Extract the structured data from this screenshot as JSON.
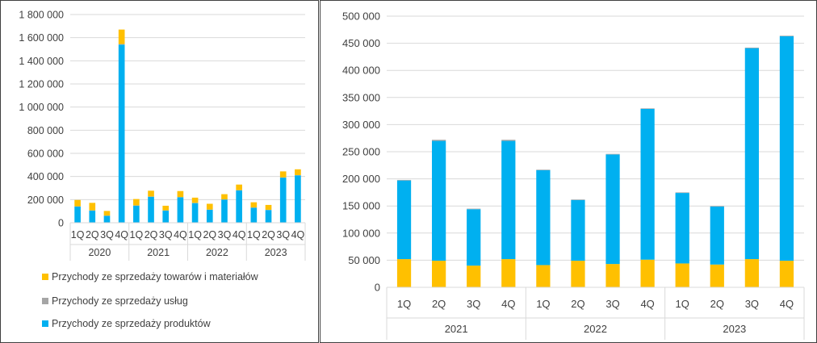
{
  "chart_data": [
    {
      "type": "bar",
      "stacked": true,
      "categories": [
        "1Q",
        "2Q",
        "3Q",
        "4Q",
        "1Q",
        "2Q",
        "3Q",
        "4Q",
        "1Q",
        "2Q",
        "3Q",
        "4Q",
        "1Q",
        "2Q",
        "3Q",
        "4Q"
      ],
      "groups": [
        {
          "label": "2020",
          "count": 4
        },
        {
          "label": "2021",
          "count": 4
        },
        {
          "label": "2022",
          "count": 4
        },
        {
          "label": "2023",
          "count": 4
        }
      ],
      "series": [
        {
          "name": "Przychody ze sprzedaży produktów",
          "color": "#00B0F0",
          "values": [
            140000,
            105000,
            60000,
            1540000,
            148000,
            225000,
            105000,
            220000,
            170000,
            112000,
            200000,
            280000,
            130000,
            110000,
            390000,
            410000
          ]
        },
        {
          "name": "Przychody ze sprzedaży usług",
          "color": "#A5A5A5",
          "values": [
            2000,
            2000,
            2000,
            5000,
            2000,
            2000,
            2000,
            2000,
            2000,
            2000,
            2000,
            2000,
            2000,
            2000,
            2000,
            2000
          ]
        },
        {
          "name": "Przychody ze sprzedaży towarów i materiałów",
          "color": "#FFC000",
          "values": [
            55000,
            65000,
            40000,
            125000,
            55000,
            50000,
            40000,
            52000,
            45000,
            50000,
            45000,
            48000,
            45000,
            42000,
            52000,
            50000
          ]
        }
      ],
      "ylim": [
        0,
        1800000
      ],
      "yticks": [
        "0",
        "200 000",
        "400 000",
        "600 000",
        "800 000",
        "1 000 000",
        "1 200 000",
        "1 400 000",
        "1 600 000",
        "1 800 000"
      ],
      "grid": true,
      "legend_position": "bottom",
      "legend_order": [
        "Przychody ze sprzedaży towarów i materiałów",
        "Przychody ze sprzedaży usług",
        "Przychody ze sprzedaży produktów"
      ]
    },
    {
      "type": "bar",
      "stacked": true,
      "categories": [
        "1Q",
        "2Q",
        "3Q",
        "4Q",
        "1Q",
        "2Q",
        "3Q",
        "4Q",
        "1Q",
        "2Q",
        "3Q",
        "4Q"
      ],
      "groups": [
        {
          "label": "2021",
          "count": 4
        },
        {
          "label": "2022",
          "count": 4
        },
        {
          "label": "2023",
          "count": 4
        }
      ],
      "series": [
        {
          "name": "Przychody ze sprzedaży towarów i materiałów",
          "color": "#FFC000",
          "values": [
            52000,
            49000,
            40000,
            52000,
            41000,
            49000,
            43000,
            51000,
            44000,
            42000,
            52000,
            49000
          ]
        },
        {
          "name": "Przychody ze sprzedaży produktów",
          "color": "#00B0F0",
          "values": [
            145000,
            221000,
            104000,
            218000,
            175000,
            112000,
            202000,
            278000,
            130000,
            107000,
            389000,
            414000
          ]
        },
        {
          "name": "Przychody ze sprzedaży usług",
          "color": "#A5A5A5",
          "values": [
            1000,
            2000,
            1000,
            2000,
            1000,
            1000,
            1000,
            1000,
            1000,
            1000,
            1000,
            1000
          ]
        }
      ],
      "ylim": [
        0,
        500000
      ],
      "yticks": [
        "0",
        "50 000",
        "100 000",
        "150 000",
        "200 000",
        "250 000",
        "300 000",
        "350 000",
        "400 000",
        "450 000",
        "500 000"
      ],
      "grid": true,
      "legend_position": "none"
    }
  ]
}
